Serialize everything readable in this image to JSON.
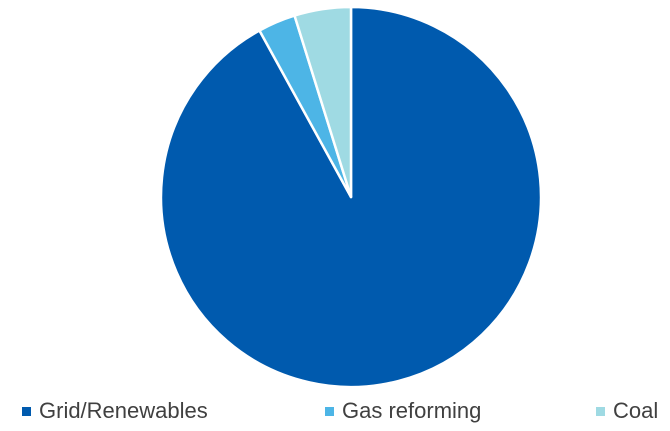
{
  "chart_data": {
    "type": "pie",
    "title": "",
    "categories": [
      "Grid/Renewables",
      "Gas reforming",
      "Coal"
    ],
    "values": [
      92,
      3.2,
      4.8
    ],
    "colors": [
      "#005AAE",
      "#4DB5E6",
      "#9FDAE3"
    ],
    "start_angle_deg": 0,
    "direction": "clockwise",
    "legend_position": "bottom"
  }
}
